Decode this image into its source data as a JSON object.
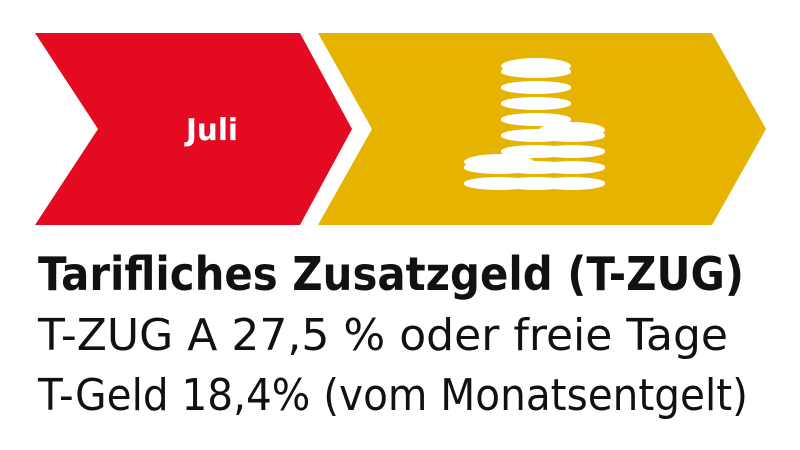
{
  "step": {
    "label": "Juli"
  },
  "title": "Tarifliches Zusatzgeld (T-ZUG)",
  "lines": [
    "T-ZUG A 27,5 % oder freie Tage",
    "T-Geld 18,4% (vom Monatsentgelt)"
  ]
}
